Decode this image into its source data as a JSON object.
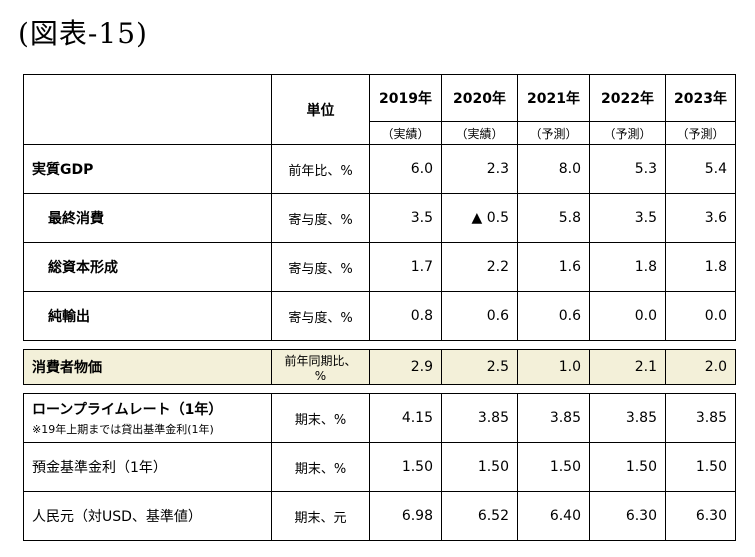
{
  "title": "(図表-15)",
  "header": {
    "unit_label": "単位",
    "years": [
      "2019年",
      "2020年",
      "2021年",
      "2022年",
      "2023年"
    ],
    "types": [
      "（実績）",
      "（実績）",
      "（予測）",
      "（予測）",
      "（予測）"
    ]
  },
  "rows": {
    "gdp": {
      "label": "実質GDP",
      "unit": "前年比、%",
      "values": [
        "6.0",
        "2.3",
        "8.0",
        "5.3",
        "5.4"
      ]
    },
    "consumption": {
      "label": "最終消費",
      "unit": "寄与度、%",
      "values": [
        "3.5",
        "▲ 0.5",
        "5.8",
        "3.5",
        "3.6"
      ]
    },
    "capital": {
      "label": "総資本形成",
      "unit": "寄与度、%",
      "values": [
        "1.7",
        "2.2",
        "1.6",
        "1.8",
        "1.8"
      ]
    },
    "netexports": {
      "label": "純輸出",
      "unit": "寄与度、%",
      "values": [
        "0.8",
        "0.6",
        "0.6",
        "0.0",
        "0.0"
      ]
    },
    "cpi": {
      "label": "消費者物価",
      "unit": "前年同期比、%",
      "values": [
        "2.9",
        "2.5",
        "1.0",
        "2.1",
        "2.0"
      ]
    },
    "lpr": {
      "label": "ローンプライムレート（1年）",
      "note": "※19年上期までは貸出基準金利(1年)",
      "unit": "期末、%",
      "values": [
        "4.15",
        "3.85",
        "3.85",
        "3.85",
        "3.85"
      ]
    },
    "deposit": {
      "label": "預金基準金利（1年）",
      "unit": "期末、%",
      "values": [
        "1.50",
        "1.50",
        "1.50",
        "1.50",
        "1.50"
      ]
    },
    "rmb": {
      "label": "人民元（対USD、基準値）",
      "unit": "期末、元",
      "values": [
        "6.98",
        "6.52",
        "6.40",
        "6.30",
        "6.30"
      ]
    }
  }
}
